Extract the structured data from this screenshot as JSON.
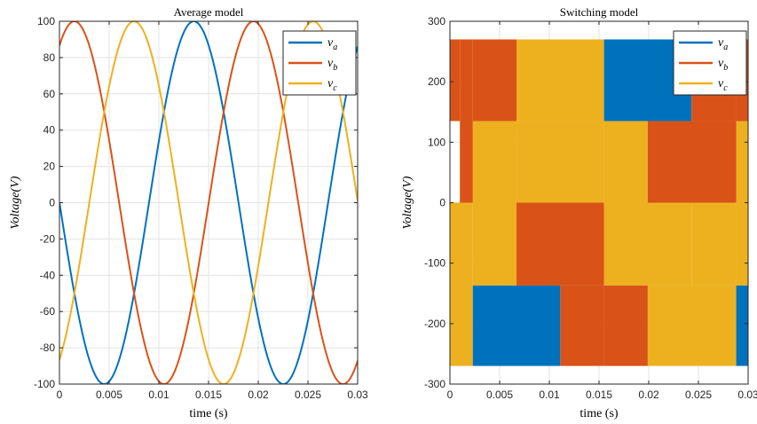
{
  "chart_data": [
    {
      "type": "line",
      "title": "Average model",
      "xlabel": "time (s)",
      "ylabel": "Voltage(V)",
      "xlim": [
        0,
        0.03
      ],
      "ylim": [
        -100,
        100
      ],
      "xticks": [
        "0",
        "0.005",
        "0.01",
        "0.015",
        "0.02",
        "0.025",
        "0.03"
      ],
      "yticks": [
        "-100",
        "-80",
        "-60",
        "-40",
        "-20",
        "0",
        "20",
        "40",
        "60",
        "80",
        "100"
      ],
      "grid": true,
      "legend_position": "top-right",
      "amplitude": 100,
      "frequency_hz": 55.5,
      "series": [
        {
          "name": "v_a",
          "label_main": "v",
          "label_sub": "a",
          "color": "#0072BD",
          "phase_deg": 180
        },
        {
          "name": "v_b",
          "label_main": "v",
          "label_sub": "b",
          "color": "#D95319",
          "phase_deg": 60
        },
        {
          "name": "v_c",
          "label_main": "v",
          "label_sub": "c",
          "color": "#EDB120",
          "phase_deg": -60
        }
      ]
    },
    {
      "type": "line",
      "title": "Switching model",
      "xlabel": "time (s)",
      "ylabel": "Voltage(V)",
      "xlim": [
        0,
        0.03
      ],
      "ylim": [
        -300,
        300
      ],
      "xticks": [
        "0",
        "0.005",
        "0.01",
        "0.015",
        "0.02",
        "0.025",
        "0.03"
      ],
      "yticks": [
        "-300",
        "-200",
        "-100",
        "0",
        "100",
        "200",
        "300"
      ],
      "grid": true,
      "legend_position": "top-right",
      "series": [
        {
          "name": "v_a",
          "label_main": "v",
          "label_sub": "a",
          "color": "#0072BD",
          "segments": [
            {
              "x0": 0.0023,
              "x1": 0.0111,
              "y_low": -270,
              "y_high": -137
            },
            {
              "x0": 0.0155,
              "x1": 0.0243,
              "y_low": 135,
              "y_high": 270
            },
            {
              "x0": 0.0288,
              "x1": 0.03,
              "y_low": -270,
              "y_high": -137
            }
          ]
        },
        {
          "name": "v_b",
          "label_main": "v",
          "label_sub": "b",
          "color": "#D95319",
          "segments": [
            {
              "x0": 0.0,
              "x1": 0.001,
              "y_low": 135,
              "y_high": 270
            },
            {
              "x0": 0.001,
              "x1": 0.0023,
              "y_low": 0,
              "y_high": 270
            },
            {
              "x0": 0.0023,
              "x1": 0.0067,
              "y_low": 135,
              "y_high": 270
            },
            {
              "x0": 0.0067,
              "x1": 0.0155,
              "y_low": -137,
              "y_high": 0
            },
            {
              "x0": 0.0111,
              "x1": 0.0155,
              "y_low": -270,
              "y_high": -137
            },
            {
              "x0": 0.0155,
              "x1": 0.0199,
              "y_low": -270,
              "y_high": -137
            },
            {
              "x0": 0.0199,
              "x1": 0.0288,
              "y_low": 0,
              "y_high": 135
            },
            {
              "x0": 0.0243,
              "x1": 0.0288,
              "y_low": 135,
              "y_high": 270
            },
            {
              "x0": 0.0288,
              "x1": 0.03,
              "y_low": 135,
              "y_high": 270
            }
          ]
        },
        {
          "name": "v_c",
          "label_main": "v",
          "label_sub": "c",
          "color": "#EDB120",
          "segments": [
            {
              "x0": 0.0,
              "x1": 0.0023,
              "y_low": -270,
              "y_high": 0
            },
            {
              "x0": 0.0023,
              "x1": 0.0067,
              "y_low": 0,
              "y_high": 135
            },
            {
              "x0": 0.0023,
              "x1": 0.0111,
              "y_low": -137,
              "y_high": 0
            },
            {
              "x0": 0.0067,
              "x1": 0.0155,
              "y_low": 135,
              "y_high": 270
            },
            {
              "x0": 0.0067,
              "x1": 0.0155,
              "y_low": 0,
              "y_high": 135
            },
            {
              "x0": 0.0155,
              "x1": 0.0199,
              "y_low": 0,
              "y_high": 135
            },
            {
              "x0": 0.0155,
              "x1": 0.0243,
              "y_low": -137,
              "y_high": 0
            },
            {
              "x0": 0.0199,
              "x1": 0.0288,
              "y_low": -270,
              "y_high": -137
            },
            {
              "x0": 0.0243,
              "x1": 0.0288,
              "y_low": -137,
              "y_high": 0
            },
            {
              "x0": 0.0288,
              "x1": 0.03,
              "y_low": -137,
              "y_high": 270
            }
          ]
        }
      ]
    }
  ]
}
